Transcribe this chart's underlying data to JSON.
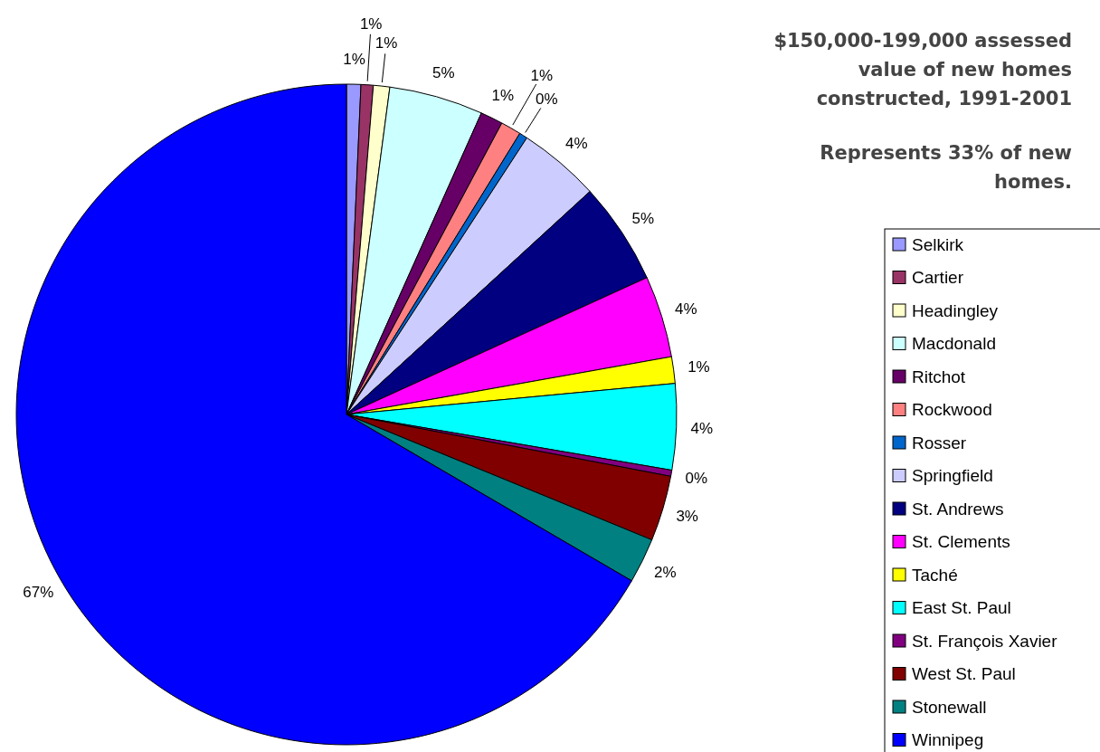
{
  "chart_data": {
    "type": "pie",
    "title": "$150,000-199,000 assessed value of new homes constructed, 1991-2001",
    "subtitle": "Represents 33% of new homes.",
    "categories": [
      "Selkirk",
      "Cartier",
      "Headingley",
      "Macdonald",
      "Ritchot",
      "Rockwood",
      "Rosser",
      "Springfield",
      "St.  Andrews",
      "St.  Clements",
      "Taché",
      "East St. Paul",
      "St. François Xavier",
      "West St. Paul",
      "Stonewall",
      "Winnipeg"
    ],
    "values": [
      0.7,
      0.6,
      0.8,
      4.6,
      1.1,
      1.0,
      0.4,
      4.0,
      5.0,
      4.0,
      1.3,
      4.2,
      0.3,
      3.2,
      2.2,
      66.6
    ],
    "value_labels": [
      "1%",
      "1%",
      "1%",
      "5%",
      "1%",
      "1%",
      "0%",
      "4%",
      "5%",
      "4%",
      "1%",
      "4%",
      "0%",
      "3%",
      "2%",
      "67%"
    ],
    "colors": [
      "#9999ff",
      "#993366",
      "#ffffcc",
      "#ccffff",
      "#660066",
      "#ff8080",
      "#0066cc",
      "#ccccff",
      "#000080",
      "#ff00ff",
      "#ffff00",
      "#00ffff",
      "#800080",
      "#800000",
      "#008080",
      "#0000ff"
    ],
    "legend": "right"
  }
}
